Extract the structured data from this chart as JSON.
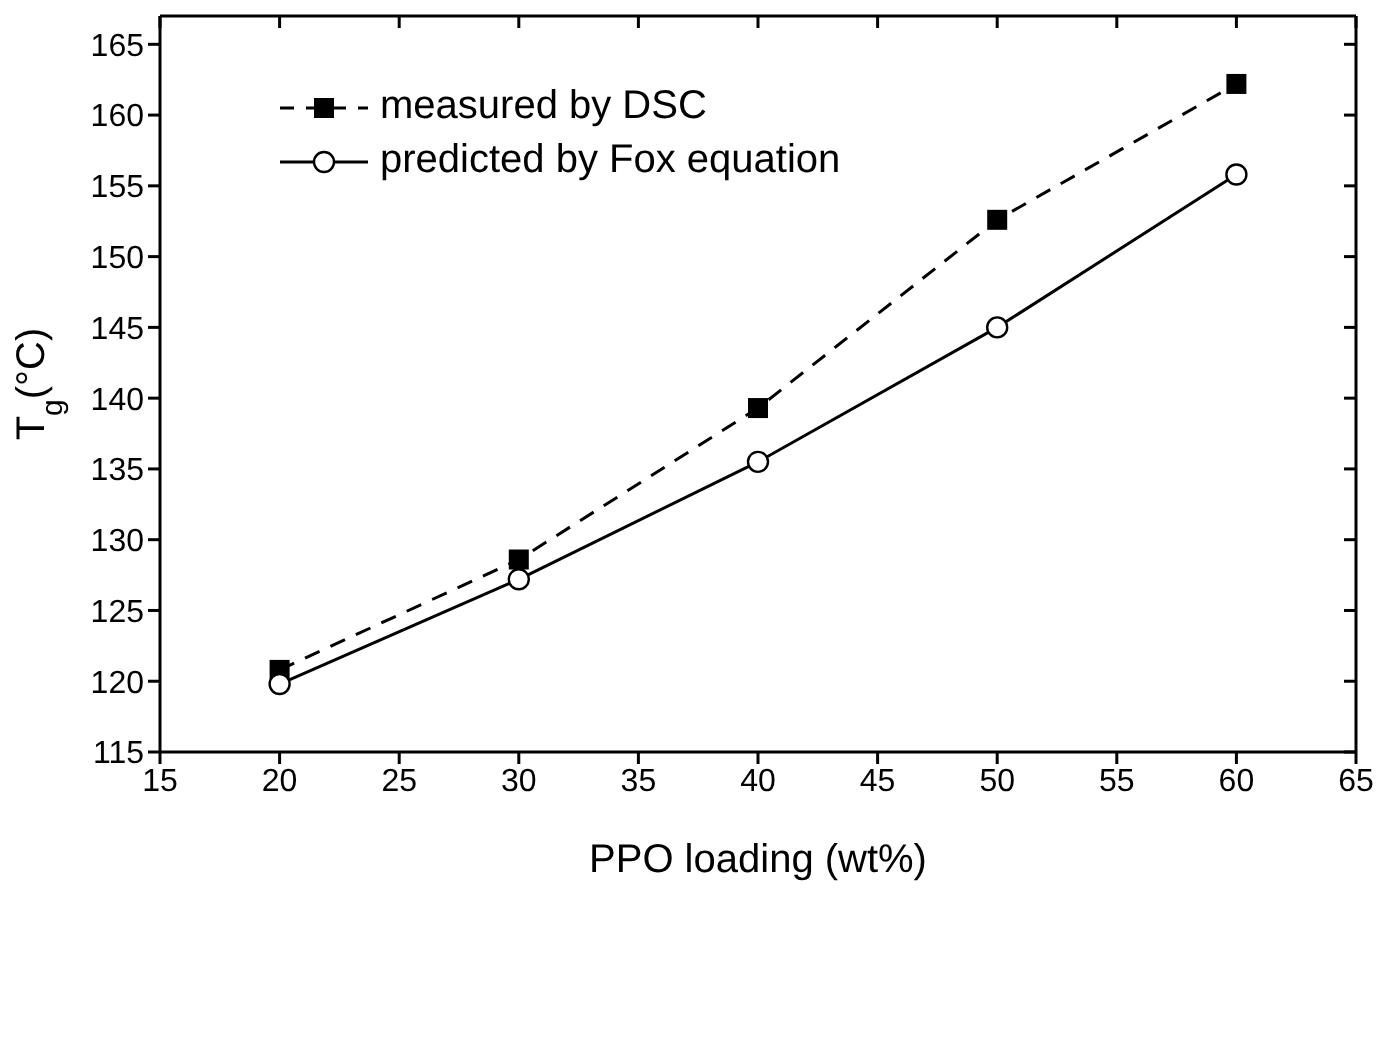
{
  "chart_data": {
    "type": "line",
    "xlabel": "PPO loading (wt%)",
    "ylabel": "T$_{g}$(°C)",
    "x": [
      20,
      30,
      40,
      50,
      60
    ],
    "series": [
      {
        "name": "measured by DSC",
        "color": "#000000",
        "values": [
          120.8,
          128.6,
          139.3,
          152.6,
          162.2
        ],
        "marker": "square",
        "line_style": "dashed"
      },
      {
        "name": "predicted by Fox equation",
        "color": "#000000",
        "values": [
          119.8,
          127.2,
          135.5,
          145.0,
          155.8
        ],
        "marker": "circle",
        "line_style": "solid"
      }
    ],
    "xlim": [
      15,
      65
    ],
    "xticks": [
      15,
      20,
      25,
      30,
      35,
      40,
      45,
      50,
      55,
      60,
      65
    ],
    "ylim": [
      115,
      167
    ],
    "yticks": [
      115,
      120,
      125,
      130,
      135,
      140,
      145,
      150,
      155,
      160,
      165
    ],
    "grid": false,
    "legend": "top left"
  }
}
